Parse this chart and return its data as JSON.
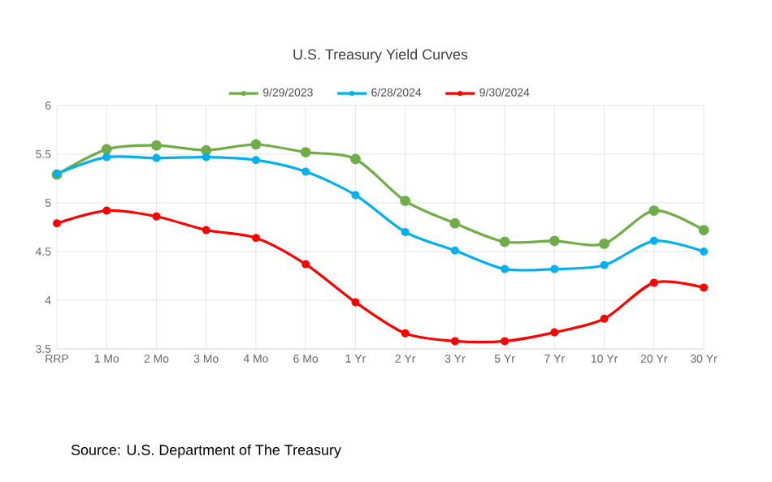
{
  "chart_data": {
    "type": "line",
    "title": "U.S. Treasury Yield Curves",
    "categories": [
      "RRP",
      "1 Mo",
      "2 Mo",
      "3 Mo",
      "4 Mo",
      "6 Mo",
      "1 Yr",
      "2 Yr",
      "3 Yr",
      "5 Yr",
      "7 Yr",
      "10 Yr",
      "20 Yr",
      "30 Yr"
    ],
    "series": [
      {
        "name": "9/29/2023",
        "color": "#70ad47",
        "values": [
          5.29,
          5.55,
          5.59,
          5.54,
          5.6,
          5.52,
          5.45,
          5.02,
          4.79,
          4.6,
          4.61,
          4.58,
          4.92,
          4.72
        ]
      },
      {
        "name": "6/28/2024",
        "color": "#00b0f0",
        "values": [
          5.3,
          5.47,
          5.46,
          5.47,
          5.44,
          5.32,
          5.08,
          4.7,
          4.51,
          4.32,
          4.32,
          4.36,
          4.61,
          4.5
        ]
      },
      {
        "name": "9/30/2024",
        "color": "#ff0000",
        "values": [
          4.79,
          4.92,
          4.86,
          4.72,
          4.64,
          4.37,
          3.98,
          3.66,
          3.58,
          3.58,
          3.67,
          3.81,
          4.18,
          4.13
        ]
      }
    ],
    "ylim": [
      3.5,
      6
    ],
    "yticks": [
      3.5,
      4,
      4.5,
      5,
      5.5,
      6
    ],
    "grid": true,
    "legend": "top",
    "marker": "circle",
    "line_style": "solid",
    "annotations": [
      "Source: U.S. Department of The Treasury"
    ]
  }
}
